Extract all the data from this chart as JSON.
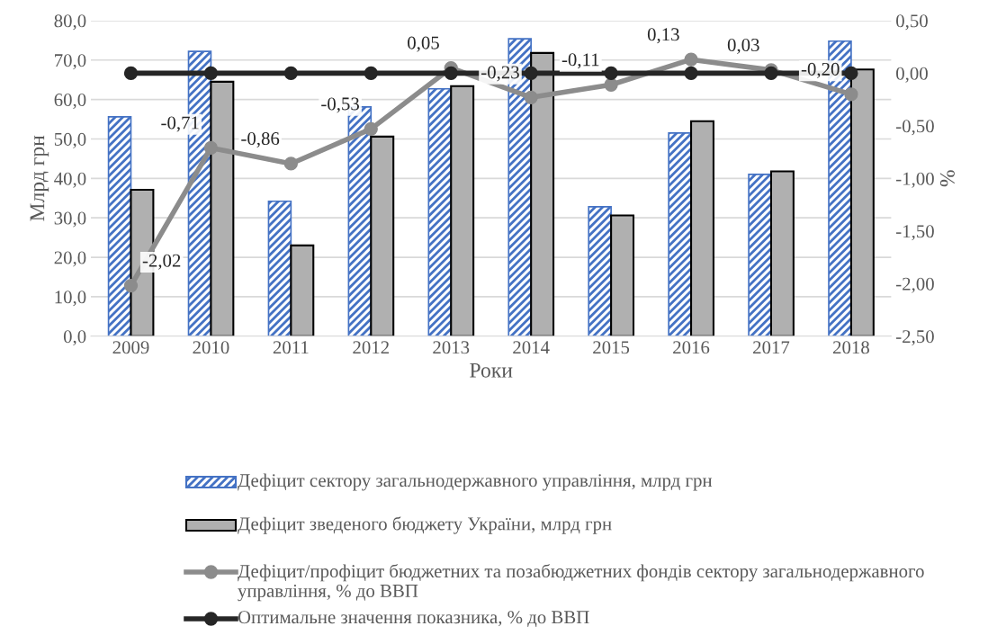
{
  "chart_data": {
    "type": "bar",
    "xlabel": "Роки",
    "ylabel": "Млрд грн",
    "y2label": "%",
    "categories": [
      "2009",
      "2010",
      "2011",
      "2012",
      "2013",
      "2014",
      "2015",
      "2016",
      "2017",
      "2018"
    ],
    "series": [
      {
        "name": "Дефіцит сектору загальнодержавного управління, млрд грн",
        "color": "#4472c4",
        "values": [
          55.6,
          72.2,
          34.2,
          58.1,
          62.7,
          75.4,
          32.8,
          51.5,
          41.0,
          74.8
        ]
      },
      {
        "name": "Дефіцит зведеного бюджету України, млрд грн",
        "color": "#b0b0b0",
        "values": [
          37.1,
          64.5,
          23.0,
          50.6,
          63.4,
          71.8,
          30.6,
          54.5,
          41.8,
          67.6
        ]
      },
      {
        "name": "Дефіцит/профіцит бюджетних та позабюджетних фондів сектору загальнодержавного управління, % до ВВП",
        "type": "line",
        "axis": "y2",
        "color": "#8c8c8c",
        "values": [
          -2.02,
          -0.71,
          -0.86,
          -0.53,
          0.05,
          -0.23,
          -0.11,
          0.13,
          0.03,
          -0.2
        ],
        "value_labels": [
          "-2,02",
          "-0,71",
          "-0,86",
          "-0,53",
          "0,05",
          "-0,23",
          "-0,11",
          "0,13",
          "0,03",
          "-0,20"
        ]
      },
      {
        "name": "Оптимальне значення показника, % до ВВП",
        "type": "line",
        "axis": "y2",
        "color": "#262626",
        "values": [
          0,
          0,
          0,
          0,
          0,
          0,
          0,
          0,
          0,
          0
        ]
      }
    ],
    "ylim": [
      0,
      80
    ],
    "yticks": [
      {
        "value": 0,
        "label": "0,0"
      },
      {
        "value": 10,
        "label": "10,0"
      },
      {
        "value": 20,
        "label": "20,0"
      },
      {
        "value": 30,
        "label": "30,0"
      },
      {
        "value": 40,
        "label": "40,0"
      },
      {
        "value": 50,
        "label": "50,0"
      },
      {
        "value": 60,
        "label": "60,0"
      },
      {
        "value": 70,
        "label": "70,0"
      },
      {
        "value": 80,
        "label": "80,0"
      }
    ],
    "y2lim": [
      -2.5,
      0.5
    ],
    "y2ticks": [
      {
        "value": -2.5,
        "label": "-2,50"
      },
      {
        "value": -2,
        "label": "-2,00"
      },
      {
        "value": -1.5,
        "label": "-1,50"
      },
      {
        "value": -1,
        "label": "-1,00"
      },
      {
        "value": -0.5,
        "label": "-0,50"
      },
      {
        "value": 0,
        "label": "0,00"
      },
      {
        "value": 0.5,
        "label": "0,50"
      }
    ],
    "grid": "y",
    "legend": "bottom",
    "marker": "circle"
  }
}
